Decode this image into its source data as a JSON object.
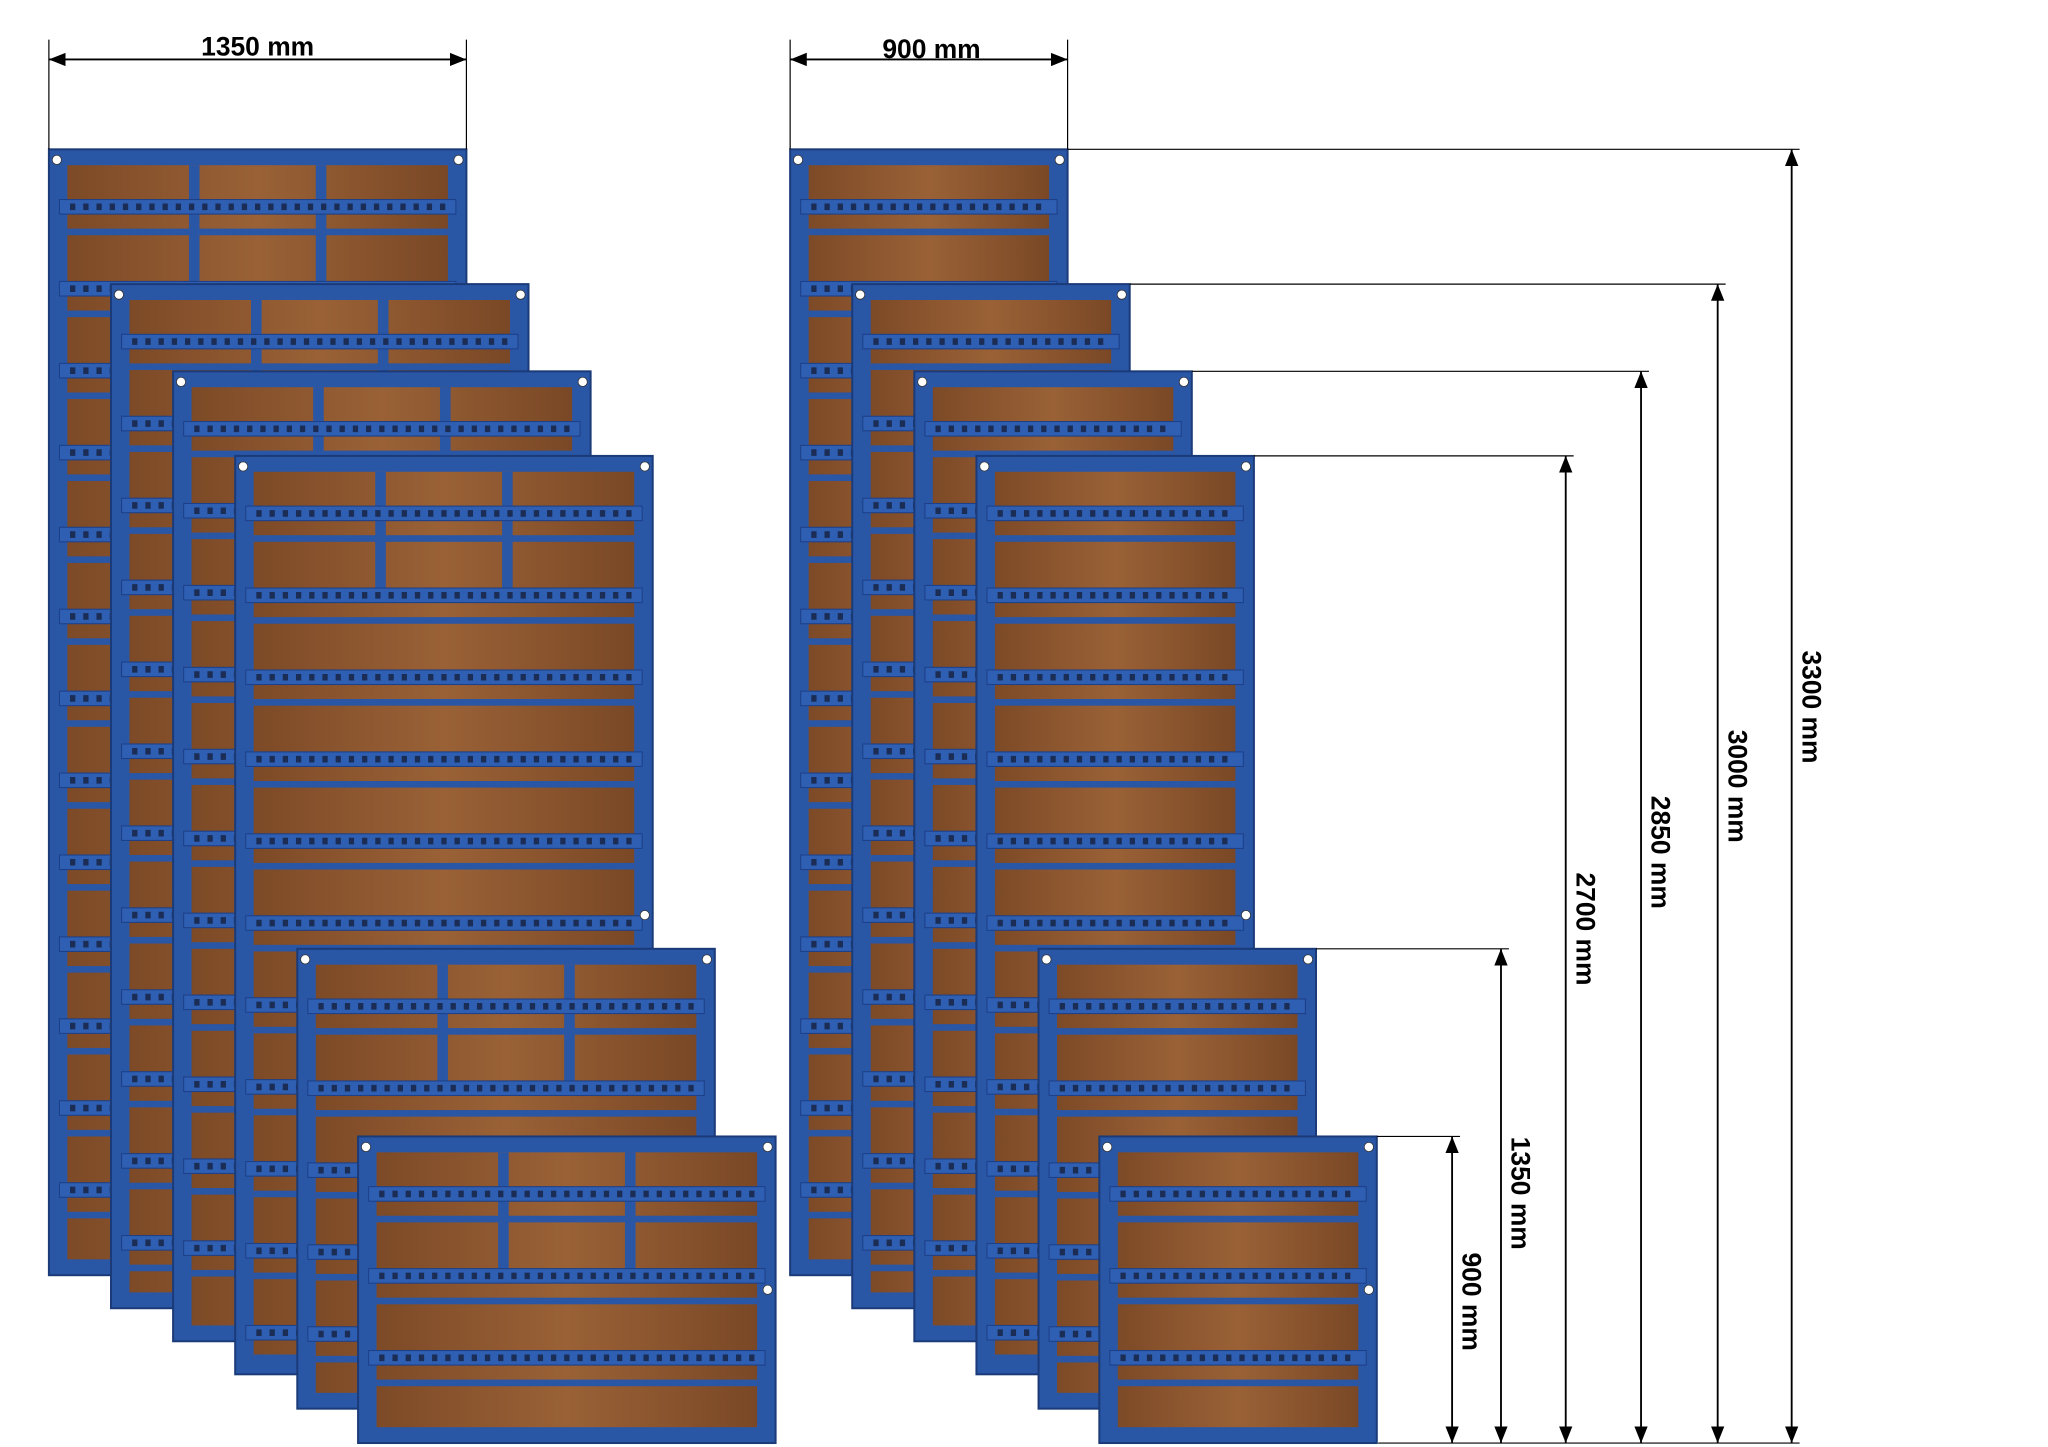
{
  "dimensions": {
    "left_width": "1350 mm",
    "right_width": "900 mm",
    "heights": [
      "3300 mm",
      "3000 mm",
      "2850 mm",
      "2700 mm",
      "1350 mm",
      "900 mm"
    ]
  }
}
